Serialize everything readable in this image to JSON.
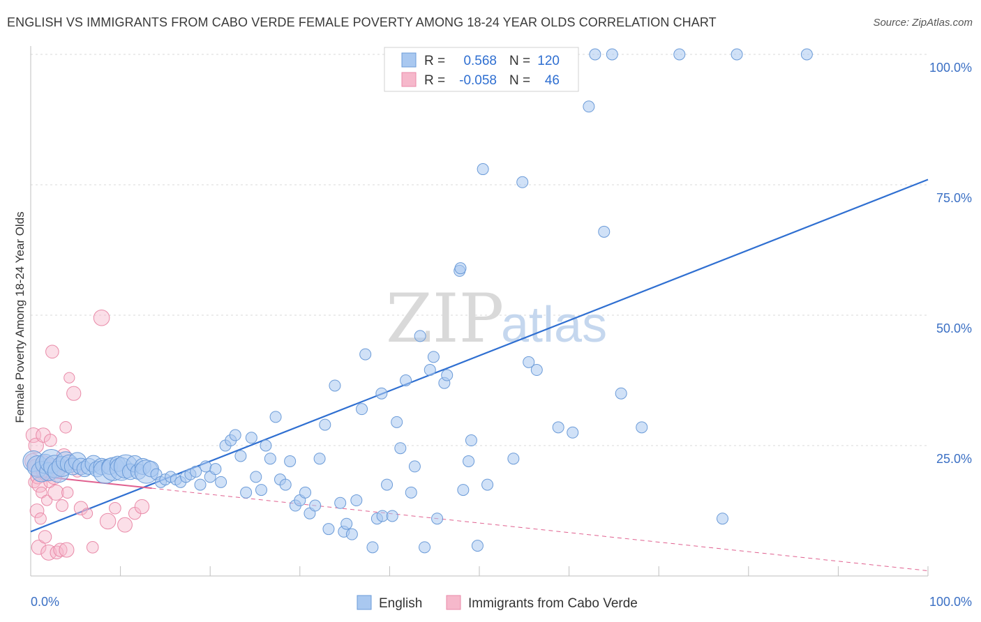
{
  "title": "ENGLISH VS IMMIGRANTS FROM CABO VERDE FEMALE POVERTY AMONG 18-24 YEAR OLDS CORRELATION CHART",
  "source": "Source: ZipAtlas.com",
  "watermark": {
    "zip": "ZIP",
    "atlas": "atlas"
  },
  "colors": {
    "english_fill": "#a9c8f0",
    "english_stroke": "#6b9bd8",
    "english_line": "#2f6fd1",
    "cabo_fill": "#f6b8cb",
    "cabo_stroke": "#e98aa8",
    "cabo_line": "#e0608f",
    "grid": "#d8d8d8",
    "tick_label": "#3a6fc4"
  },
  "legend": {
    "rows": [
      {
        "r_label": "R =",
        "r_value": "0.568",
        "n_label": "N =",
        "n_value": "120"
      },
      {
        "r_label": "R =",
        "r_value": "-0.058",
        "n_label": "N =",
        "n_value": "46"
      }
    ]
  },
  "bottom_legend": {
    "english": "English",
    "cabo": "Immigrants from Cabo Verde"
  },
  "chart_data": {
    "type": "scatter",
    "title": "ENGLISH VS IMMIGRANTS FROM CABO VERDE FEMALE POVERTY AMONG 18-24 YEAR OLDS CORRELATION CHART",
    "xlabel": "",
    "ylabel": "Female Poverty Among 18-24 Year Olds",
    "xlim": [
      0,
      100
    ],
    "ylim": [
      0,
      100
    ],
    "x_tick_labels": [
      "0.0%",
      "100.0%"
    ],
    "y_ticks": [
      25,
      50,
      75,
      100
    ],
    "y_tick_labels": [
      "25.0%",
      "50.0%",
      "75.0%",
      "100.0%"
    ],
    "grid": true,
    "legend_position": "top-center",
    "series": [
      {
        "name": "English",
        "r": 0.568,
        "n": 120,
        "trend": {
          "x": [
            0,
            100
          ],
          "y": [
            8.5,
            76
          ]
        },
        "points": [
          [
            0.3,
            22
          ],
          [
            0.8,
            21
          ],
          [
            1.2,
            20
          ],
          [
            1.6,
            21.5
          ],
          [
            2,
            20
          ],
          [
            2.3,
            22
          ],
          [
            2.7,
            21
          ],
          [
            3.1,
            20
          ],
          [
            3.5,
            21
          ],
          [
            3.9,
            22
          ],
          [
            4.3,
            21.5
          ],
          [
            4.7,
            21
          ],
          [
            5.2,
            22
          ],
          [
            5.6,
            21
          ],
          [
            6,
            20.5
          ],
          [
            6.5,
            21
          ],
          [
            7,
            21.5
          ],
          [
            7.4,
            20.5
          ],
          [
            7.9,
            21
          ],
          [
            8.3,
            20
          ],
          [
            8.8,
            21
          ],
          [
            9.2,
            20.5
          ],
          [
            9.7,
            21.5
          ],
          [
            10.1,
            20.5
          ],
          [
            10.6,
            21
          ],
          [
            11.1,
            20
          ],
          [
            11.6,
            21.5
          ],
          [
            12,
            20
          ],
          [
            12.5,
            21
          ],
          [
            12.9,
            20
          ],
          [
            13.4,
            20.5
          ],
          [
            14,
            19.5
          ],
          [
            14.5,
            18
          ],
          [
            15,
            18.5
          ],
          [
            15.6,
            19
          ],
          [
            16.2,
            18.5
          ],
          [
            16.7,
            18
          ],
          [
            17.3,
            19
          ],
          [
            17.8,
            19.5
          ],
          [
            18.4,
            20
          ],
          [
            18.9,
            17.5
          ],
          [
            19.5,
            21
          ],
          [
            20,
            19
          ],
          [
            20.6,
            20.5
          ],
          [
            21.2,
            18
          ],
          [
            21.7,
            25
          ],
          [
            22.3,
            26
          ],
          [
            22.8,
            27
          ],
          [
            23.4,
            23
          ],
          [
            24,
            16
          ],
          [
            24.6,
            26.5
          ],
          [
            25.1,
            19
          ],
          [
            25.7,
            16.5
          ],
          [
            26.2,
            25
          ],
          [
            26.7,
            22.5
          ],
          [
            27.3,
            30.5
          ],
          [
            27.8,
            18.5
          ],
          [
            28.4,
            17.5
          ],
          [
            28.9,
            22
          ],
          [
            29.5,
            13.5
          ],
          [
            30,
            14.5
          ],
          [
            30.6,
            16
          ],
          [
            31.1,
            12
          ],
          [
            31.7,
            13.5
          ],
          [
            32.2,
            22.5
          ],
          [
            32.8,
            29
          ],
          [
            33.2,
            9
          ],
          [
            33.9,
            36.5
          ],
          [
            34.5,
            14
          ],
          [
            34.9,
            8.5
          ],
          [
            35.2,
            10
          ],
          [
            35.8,
            8
          ],
          [
            36.3,
            14.5
          ],
          [
            36.9,
            32
          ],
          [
            37.3,
            42.5
          ],
          [
            38.1,
            5.5
          ],
          [
            38.6,
            11
          ],
          [
            39.1,
            35
          ],
          [
            39.2,
            11.5
          ],
          [
            39.7,
            17.5
          ],
          [
            40.3,
            11.5
          ],
          [
            40.8,
            29.5
          ],
          [
            41.2,
            24.5
          ],
          [
            41.8,
            37.5
          ],
          [
            42.4,
            16
          ],
          [
            42.8,
            21
          ],
          [
            43.4,
            46
          ],
          [
            43.9,
            5.5
          ],
          [
            44.5,
            39.5
          ],
          [
            44.9,
            42
          ],
          [
            45.3,
            11
          ],
          [
            46.1,
            37
          ],
          [
            46.4,
            38.5
          ],
          [
            47.8,
            58.5
          ],
          [
            47.9,
            59
          ],
          [
            48.2,
            16.5
          ],
          [
            48.8,
            22
          ],
          [
            49.1,
            26
          ],
          [
            49.8,
            5.8
          ],
          [
            50.4,
            78
          ],
          [
            50.9,
            17.5
          ],
          [
            53.8,
            22.5
          ],
          [
            55.5,
            41
          ],
          [
            56.4,
            39.5
          ],
          [
            54.8,
            75.5
          ],
          [
            58.8,
            28.5
          ],
          [
            60.4,
            27.5
          ],
          [
            62.2,
            90
          ],
          [
            63.9,
            66
          ],
          [
            64.8,
            100
          ],
          [
            65.8,
            35
          ],
          [
            68.1,
            28.5
          ],
          [
            72.3,
            100
          ],
          [
            77.1,
            11
          ],
          [
            78.7,
            100
          ],
          [
            86.5,
            100
          ],
          [
            47.3,
            100
          ],
          [
            53.5,
            100
          ],
          [
            59,
            100
          ],
          [
            62.9,
            100
          ]
        ]
      },
      {
        "name": "Immigrants from Cabo Verde",
        "r": -0.058,
        "n": 46,
        "trend": {
          "x": [
            0,
            100
          ],
          "y": [
            19.3,
            1
          ]
        },
        "trend_solid_until": 13.5,
        "points": [
          [
            0.2,
            22
          ],
          [
            0.3,
            27
          ],
          [
            0.4,
            18
          ],
          [
            0.5,
            21
          ],
          [
            0.6,
            25
          ],
          [
            0.7,
            12.5
          ],
          [
            0.8,
            19
          ],
          [
            0.9,
            5.5
          ],
          [
            1,
            17.5
          ],
          [
            1.1,
            11
          ],
          [
            1.2,
            16
          ],
          [
            1.3,
            20
          ],
          [
            1.4,
            27
          ],
          [
            1.5,
            22
          ],
          [
            1.6,
            7.5
          ],
          [
            1.7,
            19.5
          ],
          [
            1.8,
            14.5
          ],
          [
            1.9,
            21
          ],
          [
            2,
            4.5
          ],
          [
            2.1,
            18
          ],
          [
            2.2,
            26
          ],
          [
            2.3,
            21.5
          ],
          [
            2.4,
            43
          ],
          [
            2.6,
            19
          ],
          [
            2.8,
            16
          ],
          [
            2.9,
            4.5
          ],
          [
            3.1,
            20
          ],
          [
            3.3,
            5
          ],
          [
            3.5,
            13.5
          ],
          [
            3.6,
            21
          ],
          [
            3.7,
            23
          ],
          [
            3.9,
            28.5
          ],
          [
            4,
            5
          ],
          [
            4.1,
            16
          ],
          [
            4.3,
            38
          ],
          [
            4.8,
            35
          ],
          [
            5.2,
            20
          ],
          [
            5.6,
            13
          ],
          [
            6.3,
            12
          ],
          [
            6.9,
            5.5
          ],
          [
            7.9,
            49.5
          ],
          [
            8.6,
            10.5
          ],
          [
            9.4,
            13
          ],
          [
            10.5,
            9.8
          ],
          [
            11.6,
            12
          ],
          [
            12.4,
            13.3
          ]
        ]
      }
    ]
  }
}
